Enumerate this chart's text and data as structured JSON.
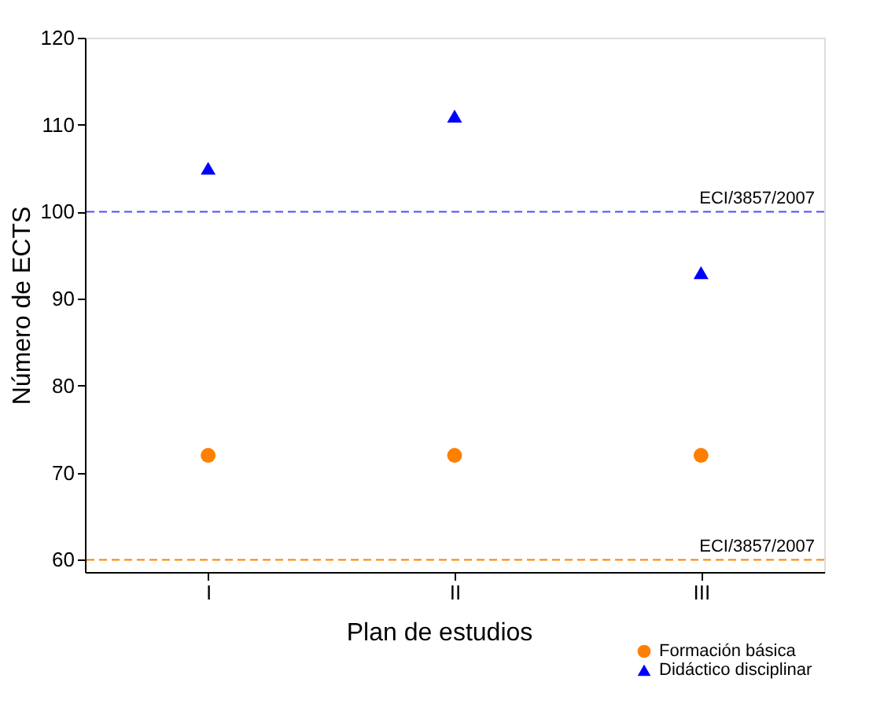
{
  "chart_data": {
    "type": "scatter",
    "xlabel": "Plan de estudios",
    "ylabel": "Número de ECTS",
    "categories": [
      "I",
      "II",
      "III"
    ],
    "series": [
      {
        "name": "Formación básica",
        "color": "#ff8000",
        "marker": "circle",
        "values": [
          72,
          72,
          72
        ]
      },
      {
        "name": "Didáctico disciplinar",
        "color": "#0000ff",
        "marker": "triangle",
        "values": [
          105,
          111,
          93
        ]
      }
    ],
    "ref_lines": [
      {
        "axis": "y",
        "value": 100,
        "label": "ECI/3857/2007",
        "color": "#4d4dff",
        "line_style": "dashed"
      },
      {
        "axis": "y",
        "value": 60,
        "label": "ECI/3857/2007",
        "color": "#ff8000",
        "line_style": "dashed"
      }
    ],
    "ylim": [
      58.6,
      120
    ],
    "yticks": [
      60,
      70,
      80,
      90,
      100,
      110,
      120
    ],
    "grid": false,
    "legend": "bottom right"
  }
}
